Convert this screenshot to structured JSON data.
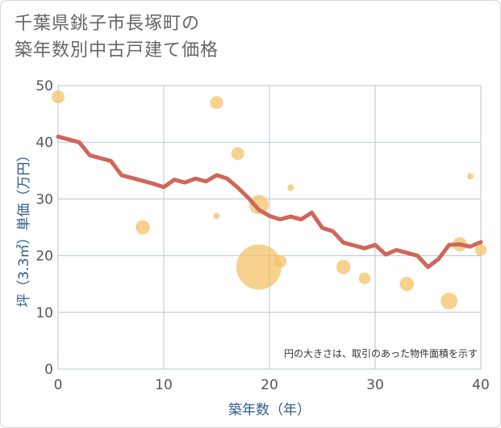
{
  "chart_data": {
    "type": "scatter",
    "title": [
      "千葉県銚子市長塚町の",
      "築年数別中古戸建て価格"
    ],
    "xlabel": "築年数（年）",
    "ylabel": "坪（3.3㎡）単価（万円）",
    "xlim": [
      0,
      40
    ],
    "ylim": [
      0,
      50
    ],
    "xticks": [
      0,
      10,
      20,
      30,
      40
    ],
    "yticks": [
      0,
      10,
      20,
      30,
      40,
      50
    ],
    "grid": true,
    "note": "円の大きさは、取引のあった物件面積を示す",
    "points": [
      {
        "x": 0,
        "y": 48,
        "size": 1.0
      },
      {
        "x": 8,
        "y": 25,
        "size": 1.1
      },
      {
        "x": 15,
        "y": 47,
        "size": 1.0
      },
      {
        "x": 15,
        "y": 27,
        "size": 0.5
      },
      {
        "x": 17,
        "y": 38,
        "size": 1.0
      },
      {
        "x": 19,
        "y": 29,
        "size": 1.5
      },
      {
        "x": 19,
        "y": 18,
        "size": 3.5
      },
      {
        "x": 21,
        "y": 19,
        "size": 1.0
      },
      {
        "x": 22,
        "y": 32,
        "size": 0.5
      },
      {
        "x": 27,
        "y": 18,
        "size": 1.1
      },
      {
        "x": 29,
        "y": 16,
        "size": 0.9
      },
      {
        "x": 33,
        "y": 15,
        "size": 1.1
      },
      {
        "x": 37,
        "y": 12,
        "size": 1.3
      },
      {
        "x": 38,
        "y": 22,
        "size": 1.1
      },
      {
        "x": 39,
        "y": 34,
        "size": 0.5
      },
      {
        "x": 40,
        "y": 21,
        "size": 0.9
      }
    ],
    "series": [
      {
        "name": "trend",
        "x": [
          0,
          1,
          2,
          3,
          4,
          5,
          6,
          7,
          8,
          9,
          10,
          11,
          12,
          13,
          14,
          15,
          16,
          17,
          18,
          19,
          20,
          21,
          22,
          23,
          24,
          25,
          26,
          27,
          28,
          29,
          30,
          31,
          32,
          33,
          34,
          35,
          36,
          37,
          38,
          39,
          40
        ],
        "y": [
          41,
          40.5,
          40,
          37.7,
          37.2,
          36.7,
          34.2,
          33.7,
          33.2,
          32.7,
          32.1,
          33.4,
          32.9,
          33.6,
          33.1,
          34.2,
          33.6,
          32.0,
          30.2,
          28.1,
          27.0,
          26.4,
          26.9,
          26.4,
          27.6,
          24.9,
          24.3,
          22.3,
          21.8,
          21.3,
          21.9,
          20.2,
          21.0,
          20.5,
          20.0,
          18.0,
          19.4,
          21.9,
          22.0,
          21.6,
          22.4
        ]
      }
    ],
    "colors": {
      "bubble": "#f5c46e",
      "line": "#d0665a",
      "grid": "#b8c6d4",
      "axis_text": "#2e5c8a"
    }
  }
}
